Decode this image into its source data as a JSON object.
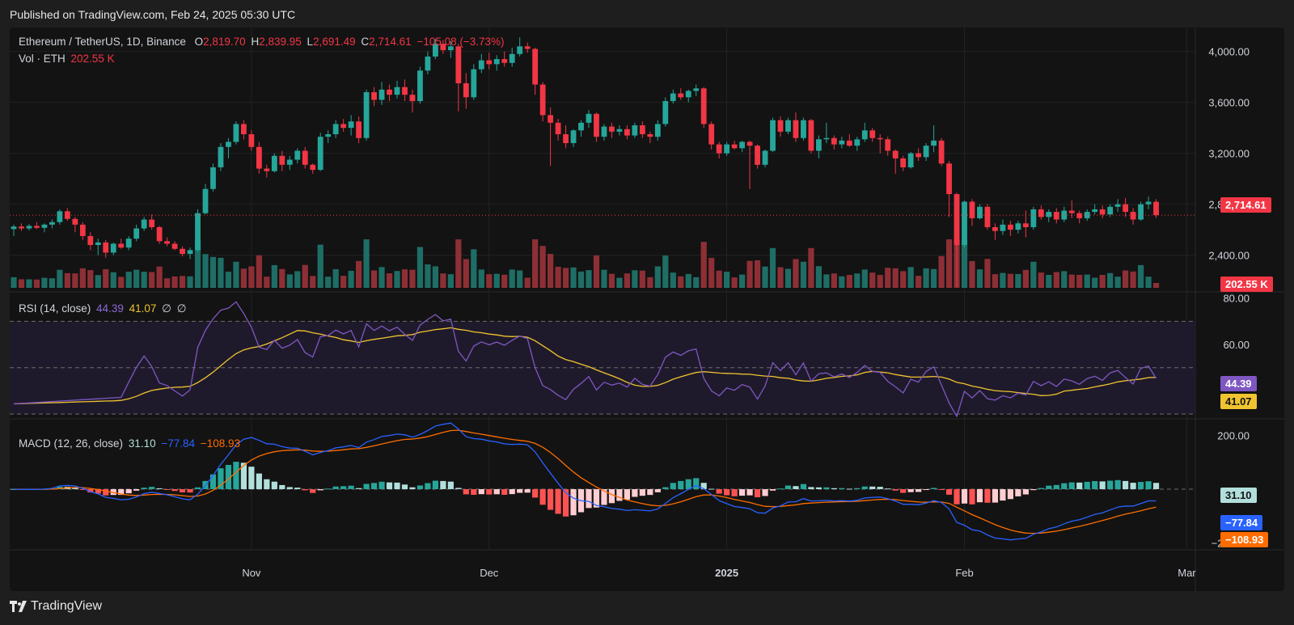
{
  "published": "Published on TradingView.com, Feb 24, 2025 05:30 UTC",
  "brand": "TradingView",
  "legend": {
    "symbol": "Ethereum / TetherUS, 1D, Binance",
    "o_label": "O",
    "o": "2,819.70",
    "h_label": "H",
    "h": "2,839.95",
    "l_label": "L",
    "l": "2,691.49",
    "c_label": "C",
    "c": "2,714.61",
    "change": "−105.08 (−3.73%)",
    "vol_label": "Vol · ETH",
    "vol": "202.55 K"
  },
  "rsi_legend": {
    "label": "RSI (14, close)",
    "rsi": "44.39",
    "ma": "41.07",
    "e1": "∅",
    "e2": "∅"
  },
  "macd_legend": {
    "label": "MACD (12, 26, close)",
    "hist": "31.10",
    "macd": "−77.84",
    "signal": "−108.93"
  },
  "colors": {
    "up": "#26a69a",
    "down": "#f23645",
    "rsi": "#7e57c2",
    "rsi_ma": "#f0c430",
    "macd": "#2962ff",
    "signal": "#ff6d00"
  },
  "chart_data": [
    {
      "type": "candlestick",
      "name": "Ethereum / TetherUS",
      "x_ticks": [
        "Nov",
        "Dec",
        "2025",
        "Feb",
        "Mar"
      ],
      "y_ticks": [
        "4,000.00",
        "3,600.00",
        "3,200.00",
        "2,800.00",
        "2,400.00"
      ],
      "ylim": [
        2150,
        4150
      ],
      "last_price": "2,714.61",
      "last_volume": "202.55 K",
      "ohlc": [
        [
          2605,
          2640,
          2550,
          2625
        ],
        [
          2625,
          2650,
          2590,
          2610
        ],
        [
          2610,
          2645,
          2595,
          2630
        ],
        [
          2630,
          2660,
          2605,
          2615
        ],
        [
          2615,
          2650,
          2580,
          2640
        ],
        [
          2640,
          2680,
          2610,
          2660
        ],
        [
          2660,
          2760,
          2640,
          2745
        ],
        [
          2745,
          2770,
          2670,
          2685
        ],
        [
          2685,
          2700,
          2580,
          2640
        ],
        [
          2640,
          2660,
          2520,
          2550
        ],
        [
          2550,
          2580,
          2440,
          2480
        ],
        [
          2480,
          2530,
          2400,
          2500
        ],
        [
          2500,
          2520,
          2380,
          2420
        ],
        [
          2420,
          2500,
          2400,
          2490
        ],
        [
          2490,
          2530,
          2450,
          2460
        ],
        [
          2460,
          2550,
          2440,
          2530
        ],
        [
          2530,
          2640,
          2510,
          2610
        ],
        [
          2610,
          2700,
          2590,
          2680
        ],
        [
          2680,
          2720,
          2600,
          2620
        ],
        [
          2620,
          2630,
          2490,
          2510
        ],
        [
          2510,
          2540,
          2470,
          2490
        ],
        [
          2490,
          2510,
          2440,
          2450
        ],
        [
          2450,
          2470,
          2390,
          2410
        ],
        [
          2410,
          2460,
          2370,
          2440
        ],
        [
          2440,
          2760,
          2430,
          2730
        ],
        [
          2730,
          2960,
          2720,
          2920
        ],
        [
          2920,
          3120,
          2900,
          3090
        ],
        [
          3090,
          3280,
          3060,
          3250
        ],
        [
          3250,
          3320,
          3160,
          3290
        ],
        [
          3290,
          3450,
          3270,
          3430
        ],
        [
          3430,
          3460,
          3310,
          3350
        ],
        [
          3350,
          3380,
          3220,
          3250
        ],
        [
          3250,
          3290,
          3040,
          3080
        ],
        [
          3080,
          3110,
          3010,
          3060
        ],
        [
          3060,
          3200,
          3050,
          3180
        ],
        [
          3180,
          3220,
          3060,
          3110
        ],
        [
          3110,
          3180,
          3070,
          3150
        ],
        [
          3150,
          3240,
          3120,
          3220
        ],
        [
          3220,
          3250,
          3080,
          3110
        ],
        [
          3110,
          3120,
          3040,
          3070
        ],
        [
          3070,
          3360,
          3060,
          3330
        ],
        [
          3330,
          3380,
          3280,
          3350
        ],
        [
          3350,
          3460,
          3320,
          3430
        ],
        [
          3430,
          3470,
          3370,
          3400
        ],
        [
          3400,
          3500,
          3340,
          3450
        ],
        [
          3450,
          3490,
          3280,
          3320
        ],
        [
          3320,
          3700,
          3300,
          3680
        ],
        [
          3680,
          3720,
          3570,
          3620
        ],
        [
          3620,
          3760,
          3580,
          3700
        ],
        [
          3700,
          3740,
          3610,
          3660
        ],
        [
          3660,
          3770,
          3630,
          3720
        ],
        [
          3720,
          3780,
          3610,
          3660
        ],
        [
          3660,
          3700,
          3520,
          3610
        ],
        [
          3610,
          3880,
          3590,
          3850
        ],
        [
          3850,
          4000,
          3820,
          3960
        ],
        [
          3960,
          4100,
          3940,
          4060
        ],
        [
          4060,
          4090,
          3980,
          4010
        ],
        [
          4010,
          4080,
          3950,
          4040
        ],
        [
          4040,
          4060,
          3530,
          3750
        ],
        [
          3750,
          3830,
          3550,
          3640
        ],
        [
          3640,
          3900,
          3620,
          3860
        ],
        [
          3860,
          3980,
          3830,
          3930
        ],
        [
          3930,
          3990,
          3860,
          3900
        ],
        [
          3900,
          3970,
          3850,
          3940
        ],
        [
          3940,
          4000,
          3880,
          3910
        ],
        [
          3910,
          4030,
          3880,
          3980
        ],
        [
          3980,
          4110,
          3960,
          4040
        ],
        [
          4040,
          4070,
          3990,
          4020
        ],
        [
          4020,
          4030,
          3660,
          3740
        ],
        [
          3740,
          3760,
          3450,
          3500
        ],
        [
          3500,
          3560,
          3100,
          3440
        ],
        [
          3440,
          3470,
          3300,
          3350
        ],
        [
          3350,
          3420,
          3240,
          3280
        ],
        [
          3280,
          3390,
          3250,
          3380
        ],
        [
          3380,
          3460,
          3330,
          3440
        ],
        [
          3440,
          3540,
          3400,
          3510
        ],
        [
          3510,
          3520,
          3290,
          3330
        ],
        [
          3330,
          3430,
          3300,
          3410
        ],
        [
          3410,
          3440,
          3320,
          3370
        ],
        [
          3370,
          3420,
          3340,
          3390
        ],
        [
          3390,
          3420,
          3310,
          3340
        ],
        [
          3340,
          3440,
          3320,
          3420
        ],
        [
          3420,
          3450,
          3320,
          3350
        ],
        [
          3350,
          3370,
          3280,
          3330
        ],
        [
          3330,
          3460,
          3300,
          3430
        ],
        [
          3430,
          3640,
          3410,
          3610
        ],
        [
          3610,
          3700,
          3590,
          3670
        ],
        [
          3670,
          3710,
          3620,
          3640
        ],
        [
          3640,
          3700,
          3600,
          3690
        ],
        [
          3690,
          3740,
          3650,
          3710
        ],
        [
          3710,
          3720,
          3400,
          3430
        ],
        [
          3430,
          3450,
          3230,
          3270
        ],
        [
          3270,
          3290,
          3160,
          3200
        ],
        [
          3200,
          3290,
          3180,
          3270
        ],
        [
          3270,
          3300,
          3230,
          3240
        ],
        [
          3240,
          3300,
          3210,
          3290
        ],
        [
          3290,
          3300,
          2920,
          3260
        ],
        [
          3260,
          3270,
          3080,
          3110
        ],
        [
          3110,
          3230,
          3090,
          3220
        ],
        [
          3220,
          3480,
          3210,
          3460
        ],
        [
          3460,
          3490,
          3330,
          3370
        ],
        [
          3370,
          3480,
          3350,
          3460
        ],
        [
          3460,
          3520,
          3290,
          3320
        ],
        [
          3320,
          3480,
          3300,
          3460
        ],
        [
          3460,
          3470,
          3200,
          3220
        ],
        [
          3220,
          3340,
          3160,
          3310
        ],
        [
          3310,
          3440,
          3280,
          3320
        ],
        [
          3320,
          3340,
          3230,
          3270
        ],
        [
          3270,
          3330,
          3240,
          3300
        ],
        [
          3300,
          3350,
          3250,
          3260
        ],
        [
          3260,
          3330,
          3220,
          3310
        ],
        [
          3310,
          3440,
          3290,
          3380
        ],
        [
          3380,
          3400,
          3290,
          3320
        ],
        [
          3320,
          3350,
          3200,
          3310
        ],
        [
          3310,
          3330,
          3180,
          3220
        ],
        [
          3220,
          3230,
          3040,
          3160
        ],
        [
          3160,
          3180,
          3060,
          3090
        ],
        [
          3090,
          3210,
          3080,
          3200
        ],
        [
          3200,
          3240,
          3140,
          3170
        ],
        [
          3170,
          3280,
          3140,
          3260
        ],
        [
          3260,
          3420,
          3210,
          3300
        ],
        [
          3300,
          3320,
          3100,
          3120
        ],
        [
          3120,
          3140,
          2700,
          2880
        ],
        [
          2880,
          2890,
          2150,
          2480
        ],
        [
          2480,
          2830,
          2460,
          2820
        ],
        [
          2820,
          2840,
          2630,
          2690
        ],
        [
          2690,
          2800,
          2680,
          2780
        ],
        [
          2780,
          2800,
          2600,
          2620
        ],
        [
          2620,
          2650,
          2520,
          2590
        ],
        [
          2590,
          2680,
          2560,
          2640
        ],
        [
          2640,
          2670,
          2550,
          2600
        ],
        [
          2600,
          2670,
          2570,
          2650
        ],
        [
          2650,
          2750,
          2540,
          2620
        ],
        [
          2620,
          2780,
          2600,
          2760
        ],
        [
          2760,
          2790,
          2680,
          2700
        ],
        [
          2700,
          2760,
          2660,
          2740
        ],
        [
          2740,
          2770,
          2650,
          2680
        ],
        [
          2680,
          2780,
          2660,
          2750
        ],
        [
          2750,
          2830,
          2690,
          2730
        ],
        [
          2730,
          2750,
          2650,
          2690
        ],
        [
          2690,
          2760,
          2670,
          2740
        ],
        [
          2740,
          2800,
          2720,
          2760
        ],
        [
          2760,
          2790,
          2690,
          2720
        ],
        [
          2720,
          2800,
          2700,
          2780
        ],
        [
          2780,
          2840,
          2740,
          2800
        ],
        [
          2800,
          2850,
          2700,
          2740
        ],
        [
          2740,
          2770,
          2640,
          2680
        ],
        [
          2680,
          2820,
          2670,
          2800
        ],
        [
          2800,
          2860,
          2760,
          2820
        ],
        [
          2819.7,
          2839.95,
          2691.49,
          2714.61
        ]
      ]
    },
    {
      "type": "line",
      "name": "RSI (14, close)",
      "y_ticks": [
        "80.00",
        "60.00"
      ],
      "ylim": [
        29,
        82
      ],
      "levels": [
        70,
        50,
        30
      ],
      "last_rsi": "44.39",
      "last_ma": "41.07"
    },
    {
      "type": "bar+line",
      "name": "MACD (12, 26, close)",
      "y_ticks": [
        "200.00",
        "−200.00"
      ],
      "ylim": [
        -220,
        250
      ],
      "last_hist": "31.10",
      "last_macd": "−77.84",
      "last_signal": "−108.93"
    }
  ]
}
